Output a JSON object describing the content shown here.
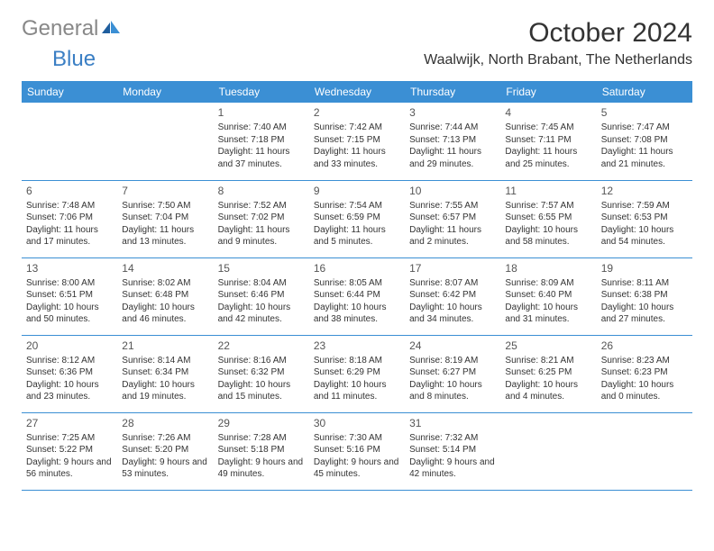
{
  "brand": {
    "part1": "General",
    "part2": "Blue"
  },
  "title": "October 2024",
  "location": "Waalwijk, North Brabant, The Netherlands",
  "colors": {
    "header_bg": "#3b8fd4",
    "header_fg": "#ffffff",
    "row_divider": "#3b8fd4",
    "logo_gray": "#888888",
    "logo_blue": "#3b7fc4",
    "text": "#333333",
    "background": "#ffffff"
  },
  "typography": {
    "title_fontsize": 30,
    "location_fontsize": 16,
    "day_header_fontsize": 12,
    "daynum_fontsize": 12,
    "cell_fontsize": 10
  },
  "day_headers": [
    "Sunday",
    "Monday",
    "Tuesday",
    "Wednesday",
    "Thursday",
    "Friday",
    "Saturday"
  ],
  "weeks": [
    [
      null,
      null,
      {
        "n": "1",
        "sunrise": "Sunrise: 7:40 AM",
        "sunset": "Sunset: 7:18 PM",
        "daylight": "Daylight: 11 hours and 37 minutes."
      },
      {
        "n": "2",
        "sunrise": "Sunrise: 7:42 AM",
        "sunset": "Sunset: 7:15 PM",
        "daylight": "Daylight: 11 hours and 33 minutes."
      },
      {
        "n": "3",
        "sunrise": "Sunrise: 7:44 AM",
        "sunset": "Sunset: 7:13 PM",
        "daylight": "Daylight: 11 hours and 29 minutes."
      },
      {
        "n": "4",
        "sunrise": "Sunrise: 7:45 AM",
        "sunset": "Sunset: 7:11 PM",
        "daylight": "Daylight: 11 hours and 25 minutes."
      },
      {
        "n": "5",
        "sunrise": "Sunrise: 7:47 AM",
        "sunset": "Sunset: 7:08 PM",
        "daylight": "Daylight: 11 hours and 21 minutes."
      }
    ],
    [
      {
        "n": "6",
        "sunrise": "Sunrise: 7:48 AM",
        "sunset": "Sunset: 7:06 PM",
        "daylight": "Daylight: 11 hours and 17 minutes."
      },
      {
        "n": "7",
        "sunrise": "Sunrise: 7:50 AM",
        "sunset": "Sunset: 7:04 PM",
        "daylight": "Daylight: 11 hours and 13 minutes."
      },
      {
        "n": "8",
        "sunrise": "Sunrise: 7:52 AM",
        "sunset": "Sunset: 7:02 PM",
        "daylight": "Daylight: 11 hours and 9 minutes."
      },
      {
        "n": "9",
        "sunrise": "Sunrise: 7:54 AM",
        "sunset": "Sunset: 6:59 PM",
        "daylight": "Daylight: 11 hours and 5 minutes."
      },
      {
        "n": "10",
        "sunrise": "Sunrise: 7:55 AM",
        "sunset": "Sunset: 6:57 PM",
        "daylight": "Daylight: 11 hours and 2 minutes."
      },
      {
        "n": "11",
        "sunrise": "Sunrise: 7:57 AM",
        "sunset": "Sunset: 6:55 PM",
        "daylight": "Daylight: 10 hours and 58 minutes."
      },
      {
        "n": "12",
        "sunrise": "Sunrise: 7:59 AM",
        "sunset": "Sunset: 6:53 PM",
        "daylight": "Daylight: 10 hours and 54 minutes."
      }
    ],
    [
      {
        "n": "13",
        "sunrise": "Sunrise: 8:00 AM",
        "sunset": "Sunset: 6:51 PM",
        "daylight": "Daylight: 10 hours and 50 minutes."
      },
      {
        "n": "14",
        "sunrise": "Sunrise: 8:02 AM",
        "sunset": "Sunset: 6:48 PM",
        "daylight": "Daylight: 10 hours and 46 minutes."
      },
      {
        "n": "15",
        "sunrise": "Sunrise: 8:04 AM",
        "sunset": "Sunset: 6:46 PM",
        "daylight": "Daylight: 10 hours and 42 minutes."
      },
      {
        "n": "16",
        "sunrise": "Sunrise: 8:05 AM",
        "sunset": "Sunset: 6:44 PM",
        "daylight": "Daylight: 10 hours and 38 minutes."
      },
      {
        "n": "17",
        "sunrise": "Sunrise: 8:07 AM",
        "sunset": "Sunset: 6:42 PM",
        "daylight": "Daylight: 10 hours and 34 minutes."
      },
      {
        "n": "18",
        "sunrise": "Sunrise: 8:09 AM",
        "sunset": "Sunset: 6:40 PM",
        "daylight": "Daylight: 10 hours and 31 minutes."
      },
      {
        "n": "19",
        "sunrise": "Sunrise: 8:11 AM",
        "sunset": "Sunset: 6:38 PM",
        "daylight": "Daylight: 10 hours and 27 minutes."
      }
    ],
    [
      {
        "n": "20",
        "sunrise": "Sunrise: 8:12 AM",
        "sunset": "Sunset: 6:36 PM",
        "daylight": "Daylight: 10 hours and 23 minutes."
      },
      {
        "n": "21",
        "sunrise": "Sunrise: 8:14 AM",
        "sunset": "Sunset: 6:34 PM",
        "daylight": "Daylight: 10 hours and 19 minutes."
      },
      {
        "n": "22",
        "sunrise": "Sunrise: 8:16 AM",
        "sunset": "Sunset: 6:32 PM",
        "daylight": "Daylight: 10 hours and 15 minutes."
      },
      {
        "n": "23",
        "sunrise": "Sunrise: 8:18 AM",
        "sunset": "Sunset: 6:29 PM",
        "daylight": "Daylight: 10 hours and 11 minutes."
      },
      {
        "n": "24",
        "sunrise": "Sunrise: 8:19 AM",
        "sunset": "Sunset: 6:27 PM",
        "daylight": "Daylight: 10 hours and 8 minutes."
      },
      {
        "n": "25",
        "sunrise": "Sunrise: 8:21 AM",
        "sunset": "Sunset: 6:25 PM",
        "daylight": "Daylight: 10 hours and 4 minutes."
      },
      {
        "n": "26",
        "sunrise": "Sunrise: 8:23 AM",
        "sunset": "Sunset: 6:23 PM",
        "daylight": "Daylight: 10 hours and 0 minutes."
      }
    ],
    [
      {
        "n": "27",
        "sunrise": "Sunrise: 7:25 AM",
        "sunset": "Sunset: 5:22 PM",
        "daylight": "Daylight: 9 hours and 56 minutes."
      },
      {
        "n": "28",
        "sunrise": "Sunrise: 7:26 AM",
        "sunset": "Sunset: 5:20 PM",
        "daylight": "Daylight: 9 hours and 53 minutes."
      },
      {
        "n": "29",
        "sunrise": "Sunrise: 7:28 AM",
        "sunset": "Sunset: 5:18 PM",
        "daylight": "Daylight: 9 hours and 49 minutes."
      },
      {
        "n": "30",
        "sunrise": "Sunrise: 7:30 AM",
        "sunset": "Sunset: 5:16 PM",
        "daylight": "Daylight: 9 hours and 45 minutes."
      },
      {
        "n": "31",
        "sunrise": "Sunrise: 7:32 AM",
        "sunset": "Sunset: 5:14 PM",
        "daylight": "Daylight: 9 hours and 42 minutes."
      },
      null,
      null
    ]
  ]
}
